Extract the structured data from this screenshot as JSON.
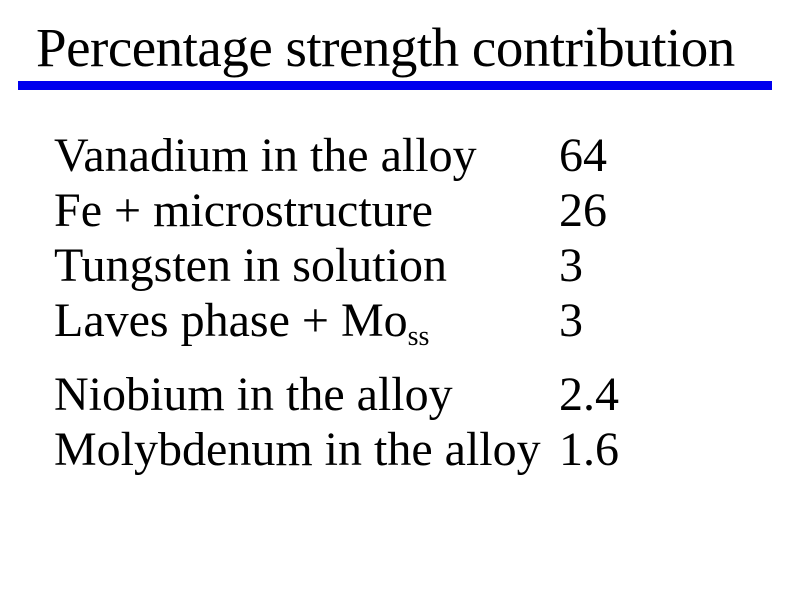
{
  "slide": {
    "title": "Percentage strength contribution",
    "accent_color": "#0000EE",
    "background_color": "#FFFFFF",
    "text_color": "#000000",
    "table": {
      "rows": [
        {
          "label": "Vanadium in the alloy",
          "value": "64"
        },
        {
          "label": "Fe + microstructure",
          "value": "26"
        },
        {
          "label": "Tungsten in solution",
          "value": "3"
        },
        {
          "label": "Laves phase + Mo",
          "label_subscript": "ss",
          "value": "3"
        },
        {
          "label": "Niobium in the alloy",
          "value": "2.4"
        },
        {
          "label": "Molybdenum in the alloy",
          "value": "1.6"
        }
      ]
    }
  },
  "chart_data": {
    "type": "table",
    "title": "Percentage strength contribution",
    "categories": [
      "Vanadium in the alloy",
      "Fe + microstructure",
      "Tungsten in solution",
      "Laves phase + Mo ss",
      "Niobium in the alloy",
      "Molybdenum in the alloy"
    ],
    "values": [
      64,
      26,
      3,
      3,
      2.4,
      1.6
    ]
  }
}
